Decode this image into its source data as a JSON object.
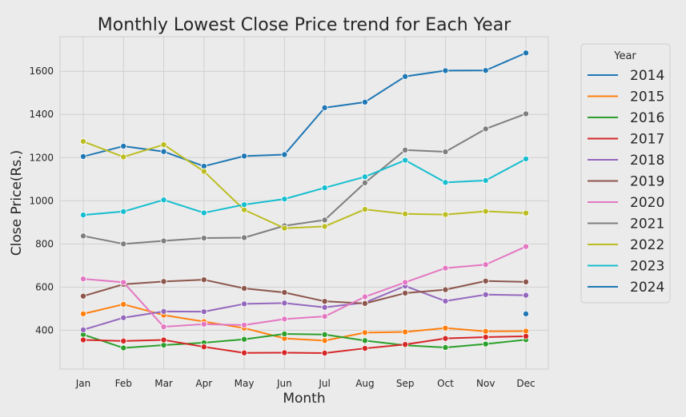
{
  "chart_data": {
    "type": "line",
    "title": "Monthly Lowest Close Price trend for Each Year",
    "xlabel": "Month",
    "ylabel": "Close Price(Rs.)",
    "categories": [
      "Jan",
      "Feb",
      "Mar",
      "Apr",
      "May",
      "Jun",
      "Jul",
      "Aug",
      "Sep",
      "Oct",
      "Nov",
      "Dec"
    ],
    "y_ticks": [
      400,
      600,
      800,
      1000,
      1200,
      1400,
      1600
    ],
    "ylim": [
      220,
      1760
    ],
    "grid": true,
    "legend": {
      "title": "Year",
      "placement": "outside-right"
    },
    "series": [
      {
        "name": "2014",
        "color": "#1f77b4",
        "values": [
          1205,
          1253,
          1228,
          1160,
          1207,
          1214,
          1431,
          1457,
          1576,
          1603,
          1604,
          1685
        ]
      },
      {
        "name": "2015",
        "color": "#ff7f0e",
        "values": [
          476,
          520,
          470,
          440,
          410,
          362,
          352,
          389,
          392,
          410,
          395,
          396
        ]
      },
      {
        "name": "2016",
        "color": "#2ca02c",
        "values": [
          380,
          318,
          331,
          342,
          358,
          383,
          380,
          352,
          330,
          320,
          336,
          356
        ]
      },
      {
        "name": "2017",
        "color": "#d62728",
        "values": [
          355,
          350,
          355,
          323,
          295,
          296,
          294,
          316,
          334,
          362,
          368,
          372
        ]
      },
      {
        "name": "2018",
        "color": "#9467bd",
        "values": [
          402,
          458,
          487,
          486,
          522,
          526,
          506,
          528,
          605,
          535,
          565,
          562
        ]
      },
      {
        "name": "2019",
        "color": "#8c564b",
        "values": [
          558,
          613,
          626,
          634,
          594,
          575,
          534,
          524,
          572,
          588,
          628,
          624
        ]
      },
      {
        "name": "2020",
        "color": "#e377c2",
        "values": [
          638,
          622,
          416,
          428,
          424,
          452,
          464,
          555,
          622,
          688,
          704,
          788
        ]
      },
      {
        "name": "2021",
        "color": "#7f7f7f",
        "values": [
          837,
          800,
          814,
          827,
          829,
          884,
          911,
          1083,
          1235,
          1227,
          1333,
          1403
        ]
      },
      {
        "name": "2022",
        "color": "#bcbd22",
        "values": [
          1275,
          1203,
          1260,
          1136,
          958,
          873,
          881,
          960,
          939,
          936,
          951,
          943
        ]
      },
      {
        "name": "2023",
        "color": "#17becf",
        "values": [
          934,
          950,
          1004,
          944,
          982,
          1008,
          1060,
          1111,
          1188,
          1085,
          1094,
          1194
        ]
      },
      {
        "name": "2024",
        "color": "#1f77b4",
        "values": [
          null,
          null,
          null,
          null,
          null,
          null,
          null,
          null,
          null,
          null,
          null,
          476
        ]
      }
    ]
  }
}
